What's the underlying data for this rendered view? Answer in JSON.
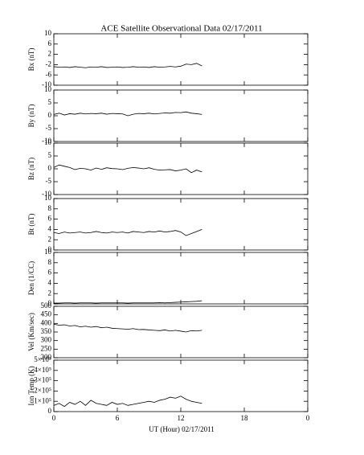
{
  "chart_data": [
    {
      "type": "line",
      "title": "ACE Satellite Observational Data   02/17/2011",
      "ylabel": "Bx (nT)",
      "color": "#000000",
      "xlim": [
        0,
        24
      ],
      "ylim": [
        -10,
        10
      ],
      "yticks": [
        10,
        6,
        2,
        -2,
        -6,
        -10
      ],
      "x": [
        0,
        0.5,
        1,
        1.5,
        2,
        2.5,
        3,
        3.5,
        4,
        4.5,
        5,
        5.5,
        6,
        6.5,
        7,
        7.5,
        8,
        8.5,
        9,
        9.5,
        10,
        10.5,
        11,
        11.5,
        12,
        12.5,
        13,
        13.5,
        14
      ],
      "values": [
        -2.8,
        -3.0,
        -2.9,
        -3.1,
        -2.8,
        -3.0,
        -3.2,
        -2.9,
        -3.0,
        -2.8,
        -3.1,
        -3.0,
        -2.9,
        -3.1,
        -3.0,
        -2.8,
        -3.0,
        -2.9,
        -3.1,
        -2.8,
        -3.0,
        -2.9,
        -2.7,
        -2.9,
        -2.6,
        -1.8,
        -2.0,
        -1.5,
        -2.5
      ]
    },
    {
      "type": "line",
      "ylabel": "By (nT)",
      "color": "#000000",
      "xlim": [
        0,
        24
      ],
      "ylim": [
        -10,
        10
      ],
      "yticks": [
        10,
        5,
        0,
        -5,
        -10
      ],
      "x": [
        0,
        0.5,
        1,
        1.5,
        2,
        2.5,
        3,
        3.5,
        4,
        4.5,
        5,
        5.5,
        6,
        6.5,
        7,
        7.5,
        8,
        8.5,
        9,
        9.5,
        10,
        10.5,
        11,
        11.5,
        12,
        12.5,
        13,
        13.5,
        14
      ],
      "values": [
        0.5,
        1.0,
        0.3,
        0.8,
        0.6,
        1.0,
        0.7,
        0.9,
        0.8,
        1.0,
        0.6,
        0.9,
        0.8,
        0.7,
        0.0,
        0.6,
        0.9,
        0.8,
        1.0,
        0.7,
        0.9,
        1.1,
        1.0,
        1.3,
        1.2,
        1.5,
        1.0,
        0.8,
        0.5
      ]
    },
    {
      "type": "line",
      "ylabel": "Bz (nT)",
      "color": "#000000",
      "xlim": [
        0,
        24
      ],
      "ylim": [
        -10,
        10
      ],
      "yticks": [
        10,
        5,
        0,
        -5,
        -10
      ],
      "x": [
        0,
        0.5,
        1,
        1.5,
        2,
        2.5,
        3,
        3.5,
        4,
        4.5,
        5,
        5.5,
        6,
        6.5,
        7,
        7.5,
        8,
        8.5,
        9,
        9.5,
        10,
        10.5,
        11,
        11.5,
        12,
        12.5,
        13,
        13.5,
        14
      ],
      "values": [
        0.5,
        1.5,
        1.0,
        0.5,
        -0.3,
        0.2,
        0.0,
        -0.5,
        0.3,
        -0.2,
        0.4,
        0.1,
        0.0,
        -0.3,
        0.2,
        0.5,
        0.3,
        0.0,
        0.4,
        -0.2,
        -0.5,
        -0.4,
        -0.3,
        -0.8,
        -0.5,
        0.0,
        -1.5,
        -0.5,
        -1.2
      ]
    },
    {
      "type": "line",
      "ylabel": "Bt (nT)",
      "color": "#000000",
      "xlim": [
        0,
        24
      ],
      "ylim": [
        0,
        10
      ],
      "yticks": [
        10,
        8,
        6,
        4,
        2,
        0
      ],
      "x": [
        0,
        0.5,
        1,
        1.5,
        2,
        2.5,
        3,
        3.5,
        4,
        4.5,
        5,
        5.5,
        6,
        6.5,
        7,
        7.5,
        8,
        8.5,
        9,
        9.5,
        10,
        10.5,
        11,
        11.5,
        12,
        12.5,
        13,
        13.5,
        14
      ],
      "values": [
        3.4,
        3.2,
        3.5,
        3.3,
        3.4,
        3.5,
        3.3,
        3.4,
        3.6,
        3.4,
        3.3,
        3.5,
        3.4,
        3.5,
        3.3,
        3.6,
        3.5,
        3.4,
        3.6,
        3.5,
        3.7,
        3.5,
        3.6,
        3.8,
        3.5,
        2.8,
        3.2,
        3.6,
        4.0
      ]
    },
    {
      "type": "line",
      "ylabel": "Den (1/CC)",
      "color": "#000000",
      "xlim": [
        0,
        24
      ],
      "ylim": [
        0,
        10
      ],
      "yticks": [
        10,
        8,
        6,
        4,
        2,
        0
      ],
      "x": [
        0,
        0.5,
        1,
        1.5,
        2,
        2.5,
        3,
        3.5,
        4,
        4.5,
        5,
        5.5,
        6,
        6.5,
        7,
        7.5,
        8,
        8.5,
        9,
        9.5,
        10,
        10.5,
        11,
        11.5,
        12,
        12.5,
        13,
        13.5,
        14
      ],
      "values": [
        0.15,
        0.15,
        0.2,
        0.2,
        0.15,
        0.2,
        0.2,
        0.2,
        0.15,
        0.2,
        0.2,
        0.2,
        0.2,
        0.2,
        0.15,
        0.2,
        0.2,
        0.2,
        0.2,
        0.2,
        0.25,
        0.2,
        0.25,
        0.3,
        0.35,
        0.4,
        0.45,
        0.5,
        0.6
      ]
    },
    {
      "type": "line",
      "ylabel": "Vel (Km/sec)",
      "color": "#000000",
      "xlim": [
        0,
        24
      ],
      "ylim": [
        200,
        500
      ],
      "yticks": [
        500,
        450,
        400,
        350,
        300,
        250,
        200
      ],
      "x": [
        0,
        0.5,
        1,
        1.5,
        2,
        2.5,
        3,
        3.5,
        4,
        4.5,
        5,
        5.5,
        6,
        6.5,
        7,
        7.5,
        8,
        8.5,
        9,
        9.5,
        10,
        10.5,
        11,
        11.5,
        12,
        12.5,
        13,
        13.5,
        14
      ],
      "values": [
        395,
        390,
        392,
        385,
        388,
        380,
        384,
        378,
        382,
        375,
        378,
        372,
        370,
        368,
        366,
        370,
        364,
        365,
        362,
        360,
        358,
        362,
        356,
        360,
        355,
        350,
        358,
        356,
        360
      ]
    },
    {
      "type": "line",
      "ylabel": "Ion Temp (K)",
      "xlabel": "UT (Hour)   02/17/2011",
      "color": "#000000",
      "xlim": [
        0,
        24
      ],
      "xticks": [
        0,
        6,
        12,
        18,
        {
          "value": 24,
          "label": "0"
        }
      ],
      "ylim": [
        0,
        500000
      ],
      "yticks": [
        {
          "value": 500000,
          "label": "5×10⁵"
        },
        {
          "value": 400000,
          "label": "4×10⁵"
        },
        {
          "value": 300000,
          "label": "3×10⁵"
        },
        {
          "value": 200000,
          "label": "2×10⁵"
        },
        {
          "value": 100000,
          "label": "1×10⁵"
        },
        0
      ],
      "x": [
        0,
        0.5,
        1,
        1.5,
        2,
        2.5,
        3,
        3.5,
        4,
        4.5,
        5,
        5.5,
        6,
        6.5,
        7,
        7.5,
        8,
        8.5,
        9,
        9.5,
        10,
        10.5,
        11,
        11.5,
        12,
        12.5,
        13,
        13.5,
        14
      ],
      "values": [
        60000,
        80000,
        50000,
        90000,
        70000,
        100000,
        60000,
        110000,
        80000,
        70000,
        60000,
        90000,
        70000,
        80000,
        60000,
        70000,
        80000,
        90000,
        100000,
        90000,
        110000,
        120000,
        140000,
        130000,
        150000,
        120000,
        100000,
        90000,
        80000
      ]
    }
  ]
}
